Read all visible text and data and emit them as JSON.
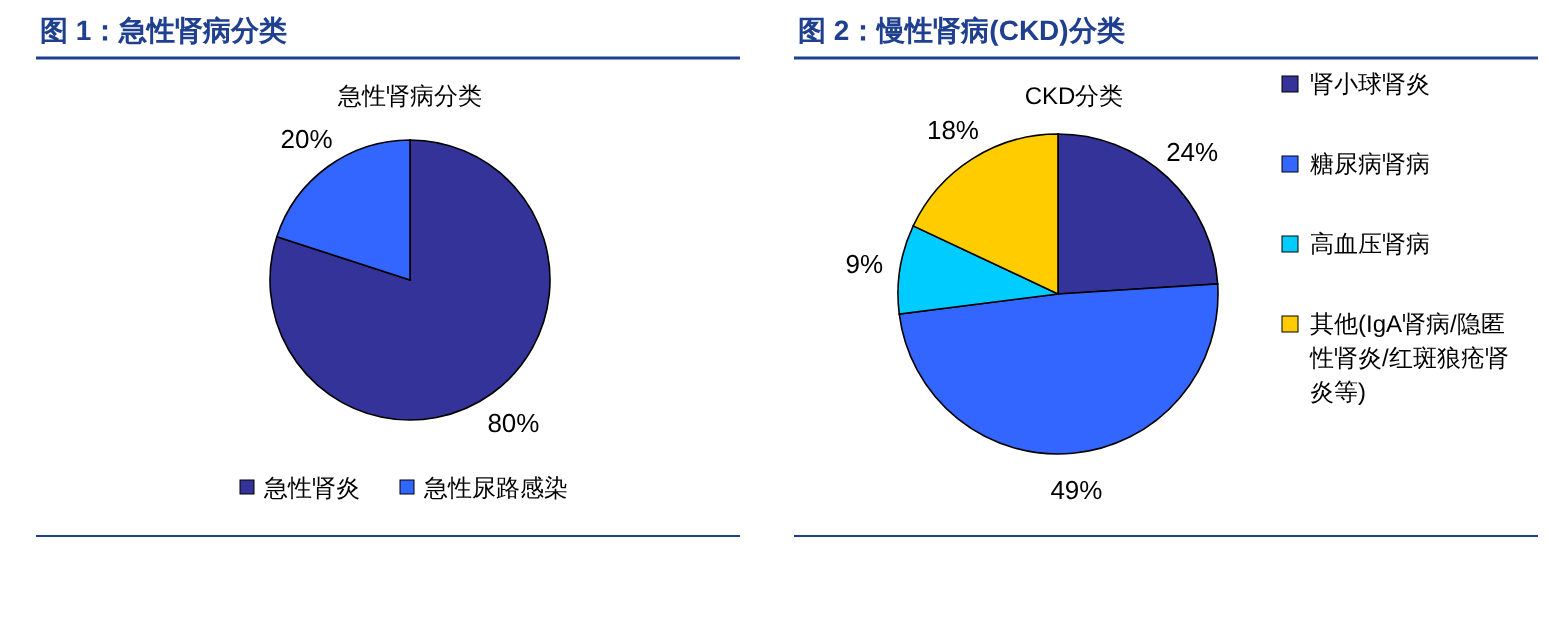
{
  "chart_data": [
    {
      "type": "pie",
      "title": "图 1：急性肾病分类",
      "subtitle": "急性肾病分类",
      "categories": [
        "急性肾炎",
        "急性尿路感染"
      ],
      "values": [
        80,
        20
      ],
      "value_labels": [
        "80%",
        "20%"
      ],
      "colors": [
        "#333399",
        "#3366ff"
      ],
      "legend": "bottom"
    },
    {
      "type": "pie",
      "title": "图 2：慢性肾病(CKD)分类",
      "subtitle": "CKD分类",
      "categories": [
        "肾小球肾炎",
        "糖尿病肾病",
        "高血压肾病",
        "其他(IgA肾病/隐匿性肾炎/红斑狼疮肾炎等)"
      ],
      "values": [
        24,
        49,
        9,
        18
      ],
      "value_labels": [
        "24%",
        "49%",
        "9%",
        "18%"
      ],
      "colors": [
        "#333399",
        "#3366ff",
        "#00ccff",
        "#ffcc00"
      ],
      "legend": "right"
    }
  ]
}
